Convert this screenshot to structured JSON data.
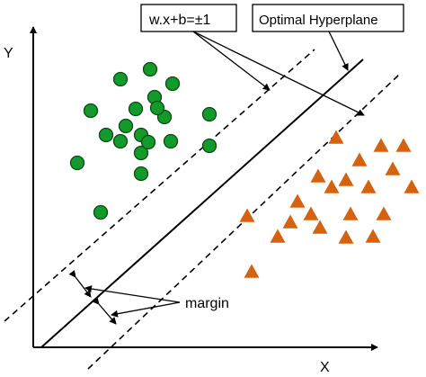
{
  "axes": {
    "y_label": "Y",
    "x_label": "X"
  },
  "callouts": {
    "equation": "w.x+b=±1",
    "hyperplane": "Optimal Hyperplane",
    "margin": "margin"
  },
  "colors": {
    "circle_fill": "#129a2a",
    "circle_stroke": "#0c4a14",
    "triangle_fill": "#d4620f",
    "line": "#000000"
  },
  "class_a": {
    "shape": "circle",
    "count": 20
  },
  "class_b": {
    "shape": "triangle",
    "count": 21
  }
}
